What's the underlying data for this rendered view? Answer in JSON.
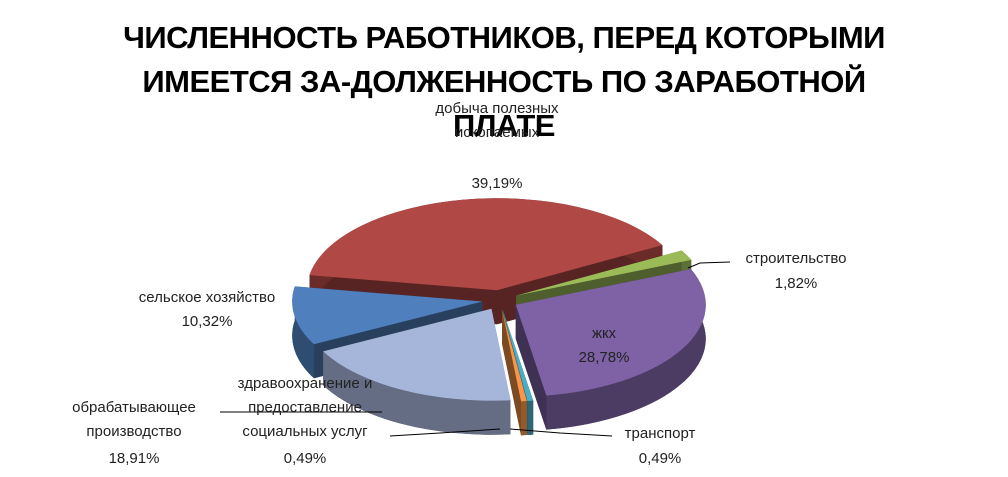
{
  "chart_data": {
    "type": "pie",
    "title": "ЧИСЛЕННОСТЬ РАБОТНИКОВ, ПЕРЕД КОТОРЫМИ ИМЕЕТСЯ ЗА-ДОЛЖЕННОСТЬ ПО ЗАРАБОТНОЙ ПЛАТЕ",
    "categories": [
      "добыча полезных ископаемых",
      "строительство",
      "жкх",
      "транспорт",
      "здравоохранение и предоставление социальных услуг",
      "обрабатывающее производство",
      "сельское хозяйство"
    ],
    "values": [
      39.19,
      1.82,
      28.78,
      0.49,
      0.49,
      18.91,
      10.32
    ],
    "value_labels": [
      "39,19%",
      "1,82%",
      "28,78%",
      "0,49%",
      "0,49%",
      "18,91%",
      "10,32%"
    ],
    "colors": [
      "#b04845",
      "#9bbb59",
      "#7e62a5",
      "#4bacc6",
      "#f79646",
      "#a6b6da",
      "#4f7fbc"
    ]
  }
}
